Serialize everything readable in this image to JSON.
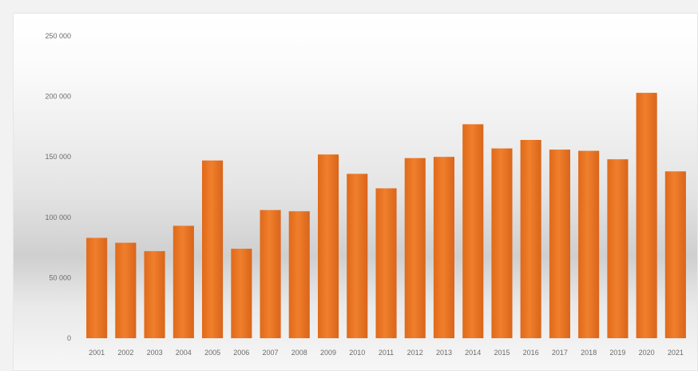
{
  "chart_data": {
    "type": "bar",
    "title": "",
    "xlabel": "",
    "ylabel": "",
    "ylim": [
      0,
      250000
    ],
    "yticks": [
      {
        "value": 0,
        "label": "0"
      },
      {
        "value": 50000,
        "label": "50 000"
      },
      {
        "value": 100000,
        "label": "100 000"
      },
      {
        "value": 150000,
        "label": "150 000"
      },
      {
        "value": 200000,
        "label": "200 000"
      },
      {
        "value": 250000,
        "label": "250 000"
      }
    ],
    "grid": false,
    "legend": "none",
    "colors": {
      "bar": "#e8711f",
      "bar_dark": "#d45f12"
    },
    "categories": [
      "2001",
      "2002",
      "2003",
      "2004",
      "2005",
      "2006",
      "2007",
      "2008",
      "2009",
      "2010",
      "2011",
      "2012",
      "2013",
      "2014",
      "2015",
      "2016",
      "2017",
      "2018",
      "2019",
      "2020",
      "2021"
    ],
    "values": [
      83000,
      79000,
      72000,
      93000,
      147000,
      74000,
      106000,
      105000,
      152000,
      136000,
      124000,
      149000,
      150000,
      177000,
      157000,
      164000,
      156000,
      155000,
      148000,
      203000,
      138000
    ]
  }
}
